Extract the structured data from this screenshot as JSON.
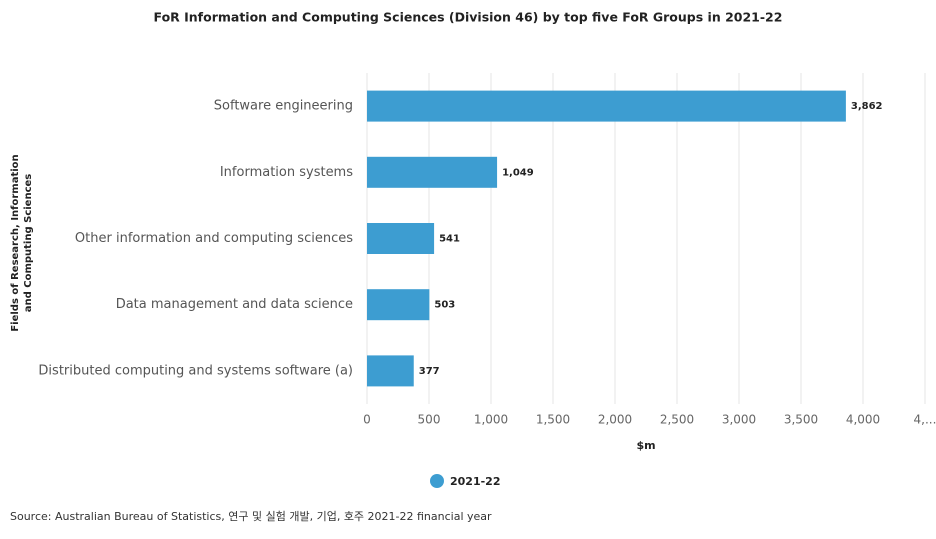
{
  "chart_data": {
    "type": "bar",
    "orientation": "horizontal",
    "title": "FoR Information and Computing Sciences (Division 46) by top five FoR Groups in 2021-22",
    "categories": [
      "Software engineering",
      "Information systems",
      "Other information and computing sciences",
      "Data management and data science",
      "Distributed computing and systems software (a)"
    ],
    "series": [
      {
        "name": "2021-22",
        "color": "#3d9dd1",
        "values": [
          3862,
          1049,
          541,
          503,
          377
        ],
        "value_labels": [
          "3,862",
          "1,049",
          "541",
          "503",
          "377"
        ]
      }
    ],
    "xlim": [
      0,
      4500
    ],
    "xticks": [
      0,
      500,
      {
        "value": 1000,
        "label": "1,000"
      },
      {
        "value": 1500,
        "label": "1,500"
      },
      {
        "value": 2000,
        "label": "2,000"
      },
      {
        "value": 2500,
        "label": "2,500"
      },
      {
        "value": 3000,
        "label": "3,000"
      },
      {
        "value": 3500,
        "label": "3,500"
      },
      {
        "value": 4000,
        "label": "4,000"
      },
      {
        "value": 4500,
        "label": "4,..."
      }
    ],
    "x_label": "$m",
    "y_label": "Fields of Research, Information and Computing Sciences",
    "grid": true,
    "legend": "bottom",
    "source": "Source: Australian Bureau of Statistics, 연구 및 실험 개발, 기업, 호주 2021-22 financial year"
  }
}
